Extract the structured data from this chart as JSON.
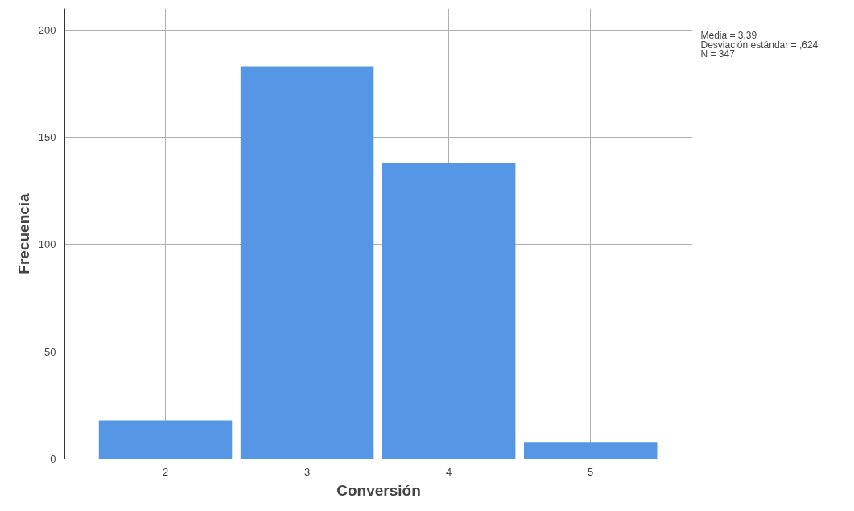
{
  "chart_data": {
    "type": "histogram",
    "xlabel": "Conversión",
    "ylabel": "Frecuencia",
    "bins": [
      1.5,
      2.5,
      3.5,
      4.5,
      5.5
    ],
    "values": [
      18,
      183,
      138,
      8
    ],
    "color": "#5596e5",
    "xlim": [
      1.29,
      5.72
    ],
    "ylim": [
      0,
      210
    ],
    "xticks": [
      2,
      3,
      4,
      5
    ],
    "yticks": [
      0,
      50,
      100,
      150,
      200
    ],
    "grid": true,
    "annotations": [
      "Media = 3,39",
      "Desviación estándar = ,624",
      "N = 347"
    ]
  }
}
